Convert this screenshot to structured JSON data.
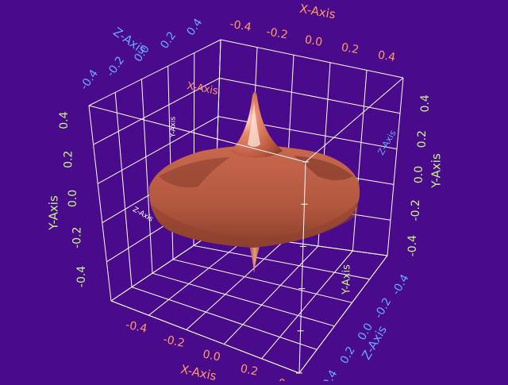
{
  "colors": {
    "background": "#4a0a8c",
    "grid": "#ffffff",
    "x_axis": "#ff9a6a",
    "y_axis": "#c8f08a",
    "z_axis": "#6aa8ff",
    "surface": "#c06048"
  },
  "chart_data": {
    "type": "surface3d",
    "title": "",
    "xlabel": "X-Axis",
    "ylabel": "Y-Axis",
    "zlabel": "Z-Axis",
    "x_ticks": [
      "-0.4",
      "-0.2",
      "0.0",
      "0.2",
      "0.4"
    ],
    "y_ticks": [
      "-0.4",
      "-0.2",
      "0.0",
      "0.2",
      "0.4"
    ],
    "z_ticks": [
      "-0.4",
      "-0.2",
      "0.0",
      "0.2",
      "0.4"
    ],
    "xlim": [
      -0.5,
      0.5
    ],
    "ylim": [
      -0.5,
      0.5
    ],
    "zlim": [
      -0.5,
      0.5
    ],
    "grid": true,
    "surface": {
      "shape": "axially symmetric spinning-top surface with sharp peak and small lower spike",
      "peak_y": 0.45,
      "rim_y": 0.0,
      "rim_radius": 0.38,
      "lower_spike_y": -0.3
    }
  }
}
